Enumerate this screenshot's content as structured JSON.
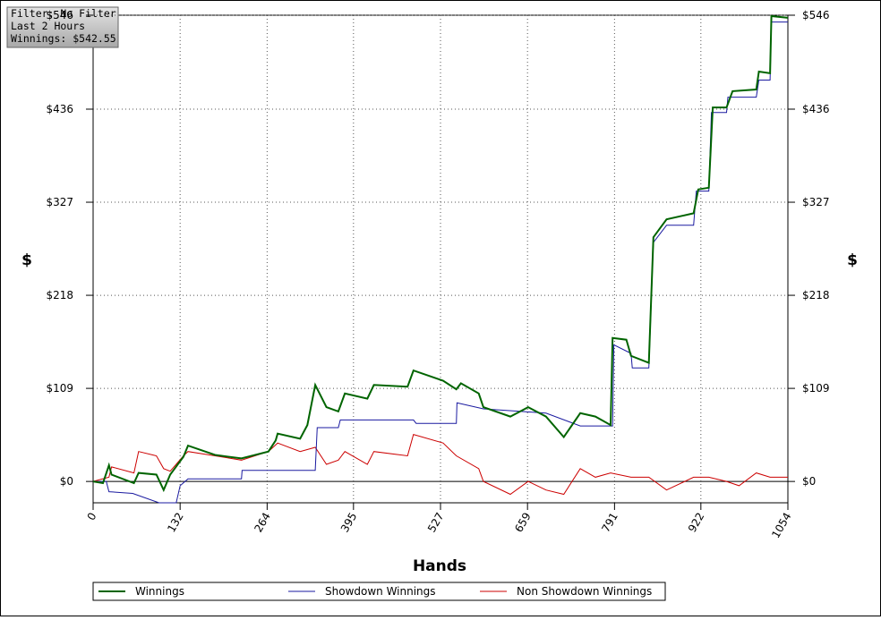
{
  "chart_data": {
    "type": "line",
    "x_label": "Hands",
    "y_label": "$",
    "annotations": [
      "Filter: No Filter",
      "Last 2 Hours",
      "Winnings: $542.55"
    ],
    "xlim": [
      0,
      1054
    ],
    "xticks": [
      0,
      132,
      264,
      395,
      527,
      659,
      791,
      922,
      1054
    ],
    "ylim": [
      -25,
      546
    ],
    "yticks": [
      {
        "value": 0,
        "label": "$0"
      },
      {
        "value": 109,
        "label": "$109"
      },
      {
        "value": 218,
        "label": "$218"
      },
      {
        "value": 327,
        "label": "$327"
      },
      {
        "value": 436,
        "label": "$436"
      },
      {
        "value": 546,
        "label": "$546"
      }
    ],
    "grid": true,
    "legend": "bottom",
    "series": [
      {
        "name": "Winnings",
        "color": "#006400",
        "x": [
          0,
          15,
          24,
          28,
          62,
          69,
          96,
          107,
          117,
          137,
          144,
          185,
          225,
          266,
          277,
          280,
          314,
          325,
          337,
          354,
          372,
          382,
          416,
          426,
          477,
          486,
          531,
          551,
          558,
          585,
          592,
          633,
          660,
          687,
          714,
          739,
          762,
          785,
          788,
          809,
          816,
          843,
          850,
          870,
          911,
          918,
          934,
          940,
          961,
          970,
          1006,
          1010,
          1027,
          1029,
          1054
        ],
        "values": [
          0,
          -2,
          19,
          8,
          -2,
          10,
          8,
          -10,
          8,
          29,
          42,
          31,
          27,
          35,
          48,
          56,
          50,
          66,
          113,
          87,
          82,
          103,
          97,
          113,
          111,
          130,
          118,
          108,
          115,
          103,
          87,
          76,
          87,
          76,
          52,
          80,
          76,
          66,
          168,
          166,
          147,
          139,
          286,
          307,
          314,
          342,
          344,
          438,
          438,
          457,
          459,
          480,
          478,
          545,
          543
        ]
      },
      {
        "name": "Showdown Winnings",
        "color": "#1a1aa0",
        "x": [
          0,
          20,
          24,
          60,
          100,
          126,
          132,
          144,
          225,
          226,
          337,
          340,
          372,
          375,
          486,
          490,
          551,
          552,
          592,
          687,
          739,
          788,
          790,
          816,
          818,
          843,
          850,
          870,
          911,
          915,
          934,
          938,
          961,
          963,
          1006,
          1010,
          1027,
          1029,
          1054
        ],
        "values": [
          0,
          0,
          -12,
          -14,
          -25,
          -25,
          -5,
          3,
          3,
          13,
          13,
          63,
          63,
          72,
          72,
          68,
          68,
          92,
          85,
          80,
          65,
          65,
          160,
          150,
          133,
          133,
          280,
          300,
          300,
          340,
          340,
          432,
          432,
          450,
          450,
          470,
          470,
          538,
          538
        ]
      },
      {
        "name": "Non Showdown Winnings",
        "color": "#cc0000",
        "x": [
          0,
          24,
          28,
          62,
          69,
          96,
          107,
          117,
          137,
          144,
          185,
          225,
          266,
          280,
          314,
          337,
          354,
          372,
          382,
          416,
          426,
          477,
          486,
          531,
          551,
          585,
          592,
          633,
          660,
          687,
          714,
          739,
          762,
          785,
          816,
          843,
          870,
          911,
          934,
          961,
          980,
          1006,
          1027,
          1054
        ],
        "values": [
          0,
          5,
          17,
          10,
          35,
          30,
          15,
          12,
          30,
          35,
          30,
          25,
          35,
          45,
          35,
          40,
          20,
          25,
          35,
          20,
          35,
          30,
          55,
          45,
          30,
          15,
          0,
          -15,
          0,
          -10,
          -15,
          15,
          5,
          10,
          5,
          5,
          -10,
          5,
          5,
          0,
          -5,
          10,
          5,
          5
        ]
      }
    ]
  }
}
